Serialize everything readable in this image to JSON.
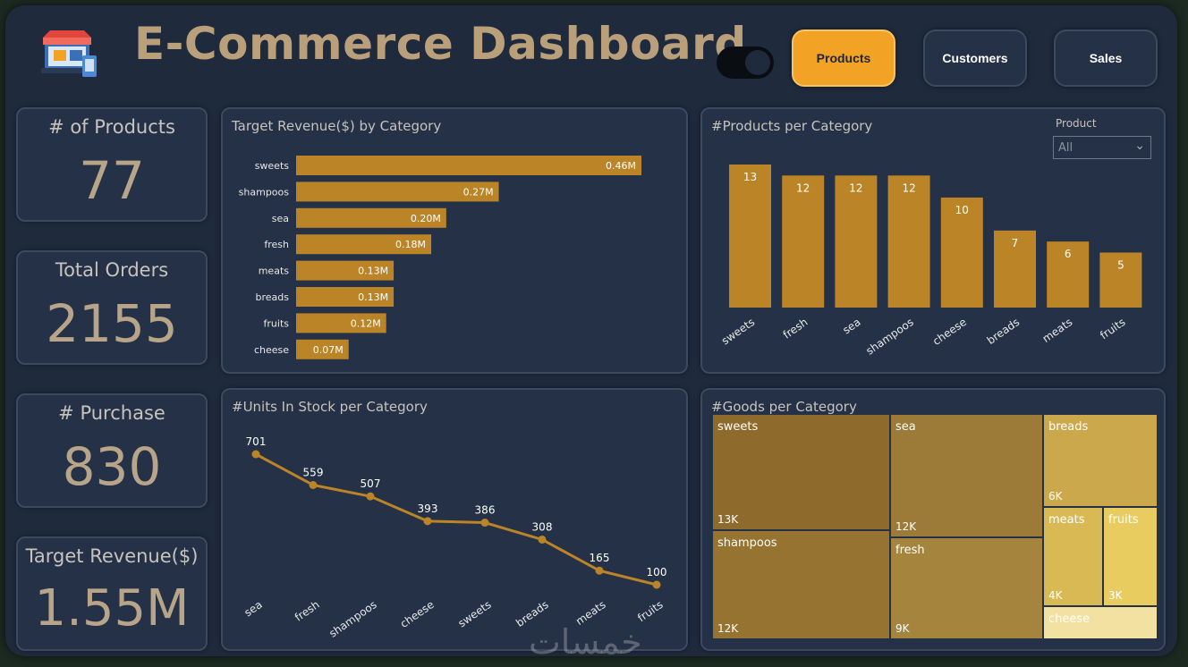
{
  "header": {
    "title": "E-Commerce Dashboard",
    "nav": [
      {
        "label": "Products",
        "active": true
      },
      {
        "label": "Customers",
        "active": false
      },
      {
        "label": "Sales",
        "active": false
      }
    ]
  },
  "kpis": [
    {
      "title": "# of Products",
      "value": "77"
    },
    {
      "title": "Total Orders",
      "value": "2155"
    },
    {
      "title": "# Purchase",
      "value": "830"
    },
    {
      "title": "Target Revenue($)",
      "value": "1.55M"
    }
  ],
  "filter": {
    "label": "Product",
    "value": "All"
  },
  "watermark": "خمسات",
  "colors": {
    "bar": "#bb8426",
    "accent": "#f2a224",
    "card": "#243147",
    "title": "#b99f7a"
  },
  "chart_data": [
    {
      "type": "bar",
      "orientation": "horizontal",
      "title": "Target Revenue($) by Category",
      "categories": [
        "sweets",
        "shampoos",
        "sea",
        "fresh",
        "meats",
        "breads",
        "fruits",
        "cheese"
      ],
      "values": [
        0.46,
        0.27,
        0.2,
        0.18,
        0.13,
        0.13,
        0.12,
        0.07
      ],
      "labels": [
        "0.46M",
        "0.27M",
        "0.20M",
        "0.18M",
        "0.13M",
        "0.13M",
        "0.12M",
        "0.07M"
      ],
      "unit": "M"
    },
    {
      "type": "bar",
      "title": "#Products per Category",
      "categories": [
        "sweets",
        "fresh",
        "sea",
        "shampoos",
        "cheese",
        "breads",
        "meats",
        "fruits"
      ],
      "values": [
        13,
        12,
        12,
        12,
        10,
        7,
        6,
        5
      ]
    },
    {
      "type": "line",
      "title": "#Units In Stock per Category",
      "categories": [
        "sea",
        "fresh",
        "shampoos",
        "cheese",
        "sweets",
        "breads",
        "meats",
        "fruits"
      ],
      "values": [
        701,
        559,
        507,
        393,
        386,
        308,
        165,
        100
      ]
    },
    {
      "type": "treemap",
      "title": "#Goods per Category",
      "items": [
        {
          "name": "sweets",
          "label": "13K",
          "color": "#8e6a2c"
        },
        {
          "name": "shampoos",
          "label": "12K",
          "color": "#977332"
        },
        {
          "name": "sea",
          "label": "12K",
          "color": "#9c7a38"
        },
        {
          "name": "fresh",
          "label": "9K",
          "color": "#a5843d"
        },
        {
          "name": "breads",
          "label": "6K",
          "color": "#cba84c"
        },
        {
          "name": "meats",
          "label": "4K",
          "color": "#d8b954"
        },
        {
          "name": "fruits",
          "label": "3K",
          "color": "#e8cc60"
        },
        {
          "name": "cheese",
          "label": "",
          "color": "#f2e1a0"
        }
      ]
    }
  ]
}
